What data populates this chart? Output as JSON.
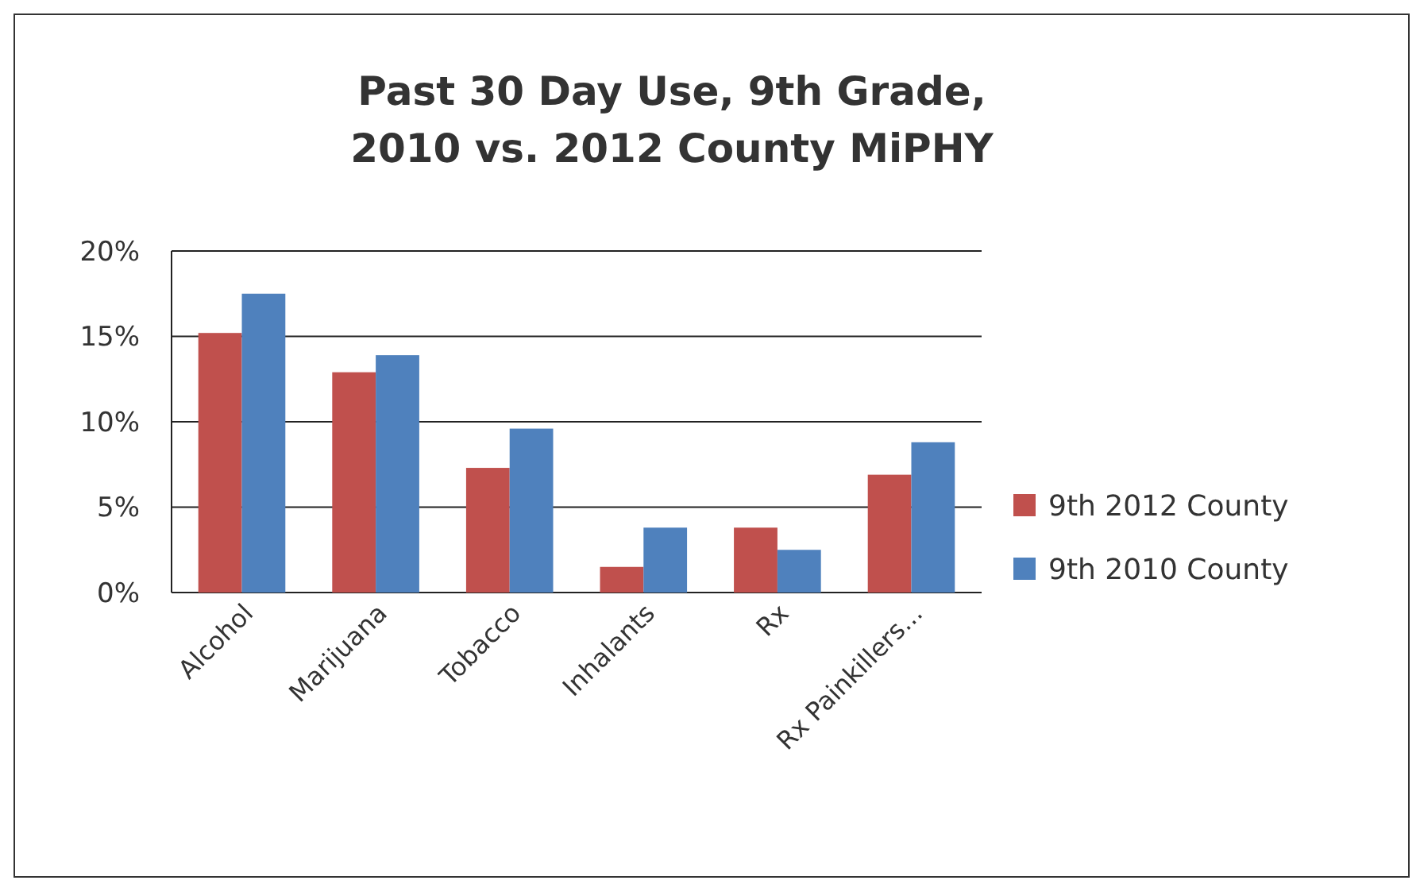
{
  "chart_data": {
    "type": "bar",
    "title": "Past 30 Day Use, 9th Grade,\n2010 vs. 2012 County MiPHY",
    "categories": [
      "Alcohol",
      "Marijuana",
      "Tobacco",
      "Inhalants",
      "Rx",
      "Rx Painkillers..."
    ],
    "series": [
      {
        "name": "9th 2012 County",
        "color": "#c0504d",
        "values": [
          15.2,
          12.9,
          7.3,
          1.5,
          3.8,
          6.9
        ]
      },
      {
        "name": "9th 2010 County",
        "color": "#4f81bd",
        "values": [
          17.5,
          13.9,
          9.6,
          3.8,
          2.5,
          8.8
        ]
      }
    ],
    "ylim": [
      0,
      20
    ],
    "yticks": [
      {
        "value": 0,
        "label": "0%"
      },
      {
        "value": 5,
        "label": "5%"
      },
      {
        "value": 10,
        "label": "10%"
      },
      {
        "value": 15,
        "label": "15%"
      },
      {
        "value": 20,
        "label": "20%"
      }
    ],
    "grid": "y",
    "legend": "right"
  }
}
